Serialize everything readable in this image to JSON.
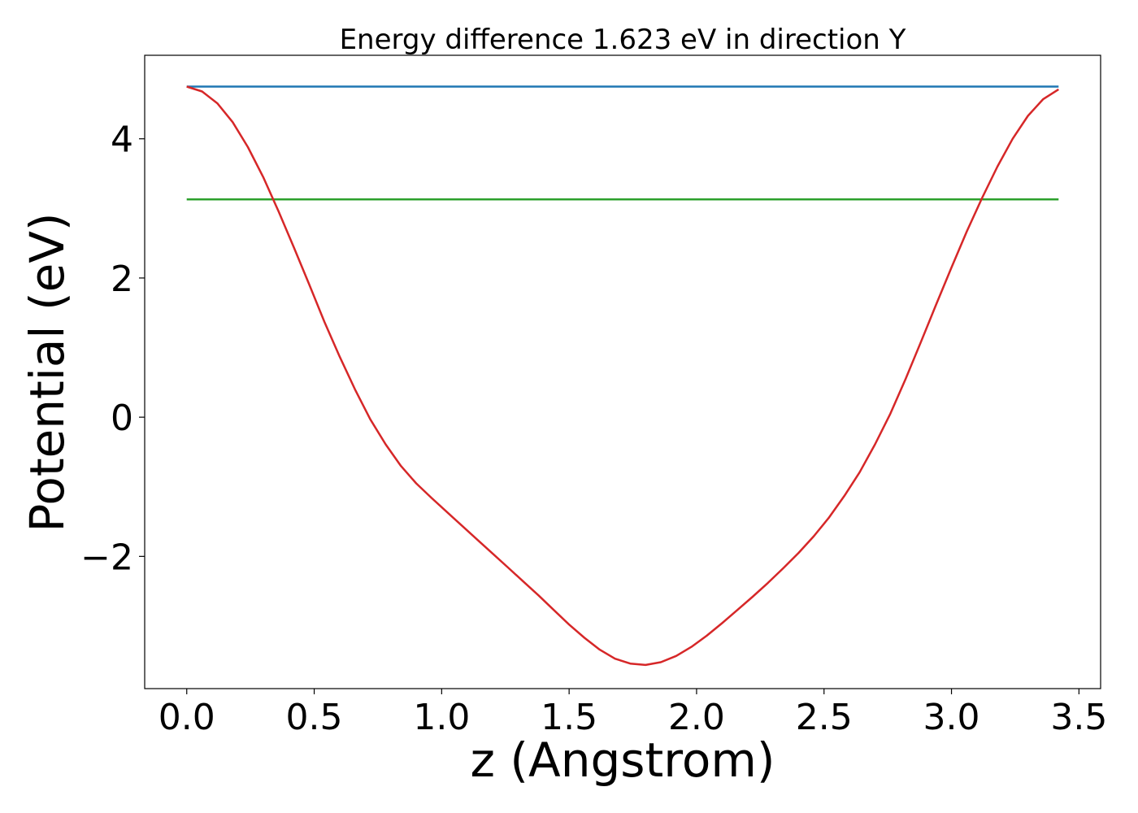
{
  "chart_data": {
    "type": "line",
    "title": "Energy difference 1.623 eV in direction Y",
    "xlabel": "z (Angstrom)",
    "ylabel": "Potential (eV)",
    "xlim": [
      -0.165,
      3.585
    ],
    "ylim": [
      -3.9,
      5.2
    ],
    "xticks": [
      0.0,
      0.5,
      1.0,
      1.5,
      2.0,
      2.5,
      3.0,
      3.5
    ],
    "xtick_labels": [
      "0.0",
      "0.5",
      "1.0",
      "1.5",
      "2.0",
      "2.5",
      "3.0",
      "3.5"
    ],
    "yticks": [
      -2,
      0,
      2,
      4
    ],
    "ytick_labels": [
      "−2",
      "0",
      "2",
      "4"
    ],
    "grid": false,
    "series": [
      {
        "color": "#1f77b4",
        "x": [
          0.0,
          3.42
        ],
        "y": [
          4.75,
          4.75
        ]
      },
      {
        "color": "#2ca02c",
        "x": [
          0.0,
          3.42
        ],
        "y": [
          3.13,
          3.13
        ]
      },
      {
        "color": "#d62728",
        "x": [
          0.0,
          0.06,
          0.12,
          0.18,
          0.24,
          0.3,
          0.36,
          0.42,
          0.48,
          0.54,
          0.6,
          0.66,
          0.72,
          0.78,
          0.84,
          0.9,
          0.96,
          1.02,
          1.08,
          1.14,
          1.2,
          1.26,
          1.32,
          1.38,
          1.44,
          1.5,
          1.56,
          1.62,
          1.68,
          1.74,
          1.8,
          1.86,
          1.92,
          1.98,
          2.04,
          2.1,
          2.16,
          2.22,
          2.28,
          2.34,
          2.4,
          2.46,
          2.52,
          2.58,
          2.64,
          2.7,
          2.76,
          2.82,
          2.88,
          2.94,
          3.0,
          3.06,
          3.12,
          3.18,
          3.24,
          3.3,
          3.36,
          3.42
        ],
        "y": [
          4.75,
          4.68,
          4.51,
          4.24,
          3.88,
          3.45,
          2.96,
          2.44,
          1.91,
          1.37,
          0.87,
          0.4,
          -0.03,
          -0.39,
          -0.7,
          -0.95,
          -1.16,
          -1.36,
          -1.56,
          -1.76,
          -1.96,
          -2.16,
          -2.36,
          -2.56,
          -2.77,
          -2.98,
          -3.17,
          -3.34,
          -3.47,
          -3.54,
          -3.56,
          -3.52,
          -3.43,
          -3.3,
          -3.14,
          -2.96,
          -2.77,
          -2.58,
          -2.38,
          -2.17,
          -1.95,
          -1.71,
          -1.44,
          -1.13,
          -0.79,
          -0.39,
          0.05,
          0.55,
          1.08,
          1.62,
          2.15,
          2.67,
          3.15,
          3.6,
          4.0,
          4.33,
          4.57,
          4.71
        ]
      }
    ]
  }
}
